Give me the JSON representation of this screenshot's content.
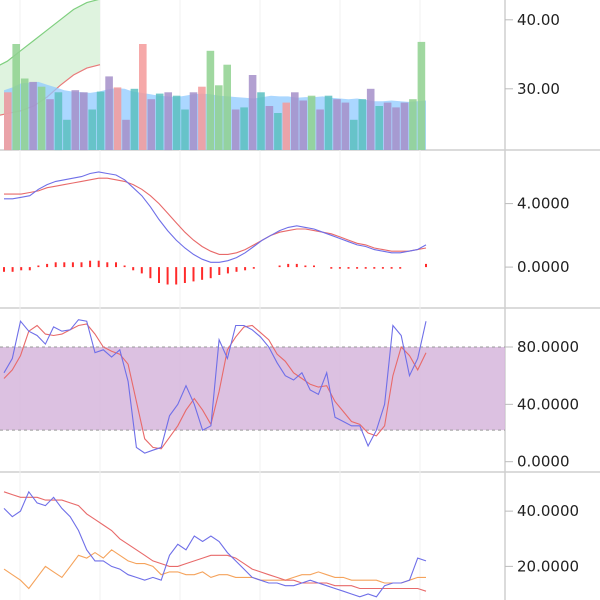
{
  "chart_data": [
    {
      "type": "bar",
      "title": "",
      "y_ticks": [
        "40.00",
        "30.00"
      ],
      "ylim": [
        22,
        42
      ],
      "series": [
        {
          "role": "volume_up",
          "color": "#8fd18f",
          "values": [
            null,
            26.5,
            null,
            null,
            null,
            null,
            null,
            null,
            null,
            null,
            null,
            null,
            null,
            null,
            null,
            null,
            null,
            null,
            null,
            null,
            null,
            null,
            null,
            null,
            null,
            null,
            null,
            null,
            null,
            null,
            null,
            null,
            null,
            26.8,
            null,
            null,
            null,
            null,
            null,
            null,
            null,
            null,
            null,
            null,
            null,
            null,
            null,
            null,
            null,
            35.0,
            null,
            null,
            null,
            null,
            null,
            null,
            null,
            null,
            null,
            null,
            null,
            null,
            null,
            null,
            null,
            null,
            null,
            null,
            null,
            null,
            null,
            null,
            null,
            null,
            null,
            null,
            null,
            null,
            null,
            null,
            null,
            null,
            null,
            null,
            null,
            null,
            null,
            null,
            null,
            null,
            null,
            null,
            null,
            null,
            null,
            null,
            null,
            null,
            null,
            null,
            null,
            null,
            null,
            null,
            null,
            null,
            null,
            null,
            null,
            null,
            null,
            null,
            null,
            null,
            null,
            null,
            null,
            null,
            null,
            null,
            null,
            null,
            null,
            null,
            null,
            null,
            null,
            null,
            null,
            null,
            null,
            null,
            null,
            null,
            null,
            null,
            null,
            null,
            null,
            null,
            null,
            null,
            null,
            null,
            null,
            null,
            null,
            null,
            null,
            null,
            null,
            null,
            null,
            null,
            null,
            null,
            null,
            null,
            null,
            null,
            null,
            null,
            null,
            null,
            null,
            null,
            null,
            null,
            null,
            null,
            null,
            null,
            null,
            null,
            null,
            null,
            null,
            null,
            null,
            null,
            null,
            null,
            null,
            null,
            null,
            null,
            null,
            null,
            null,
            null,
            null,
            null,
            null,
            null,
            null,
            null
          ]
        },
        {
          "role": "volume_bars",
          "values": [
            29.5,
            36.5,
            31.5,
            31.0,
            30.3,
            28.5,
            29.5,
            25.5,
            29.8,
            29.5,
            27.0,
            29.6,
            31.8,
            30.2,
            25.5,
            30.0,
            36.5,
            28.5,
            29.3,
            29.5,
            29.0,
            27.0,
            29.5,
            30.3,
            35.5,
            30.5,
            33.5,
            27.0,
            27.3,
            32.0,
            29.5,
            27.5,
            26.5,
            28.0,
            29.5,
            28.3,
            29.0,
            27.0,
            29.0,
            28.5,
            28.0,
            25.5,
            28.5,
            30.0,
            27.5,
            28.0,
            27.3,
            28.0,
            28.5,
            36.8
          ],
          "colors": [
            "#f49a9a",
            "#8fd18f",
            "#8fd18f",
            "#a58fc9",
            "#8fd18f",
            "#a58fc9",
            "#5bbfbf",
            "#5bbfbf",
            "#a58fc9",
            "#a58fc9",
            "#5bbfbf",
            "#5bbfbf",
            "#a58fc9",
            "#f49a9a",
            "#a58fc9",
            "#5bbfbf",
            "#f49a9a",
            "#a58fc9",
            "#5bbfbf",
            "#a58fc9",
            "#5bbfbf",
            "#5bbfbf",
            "#a58fc9",
            "#f49a9a",
            "#8fd18f",
            "#8fd18f",
            "#8fd18f",
            "#a58fc9",
            "#5bbfbf",
            "#a58fc9",
            "#5bbfbf",
            "#a58fc9",
            "#5bbfbf",
            "#f49a9a",
            "#a58fc9",
            "#a58fc9",
            "#8fd18f",
            "#a58fc9",
            "#5bbfbf",
            "#a58fc9",
            "#a58fc9",
            "#5bbfbf",
            "#5bbfbf",
            "#a58fc9",
            "#5bbfbf",
            "#a58fc9",
            "#a58fc9",
            "#a58fc9",
            "#8fd18f",
            "#8fd18f"
          ]
        },
        {
          "role": "price_area",
          "color": "#8fc9ff",
          "values": [
            29.8,
            30.2,
            30.8,
            30.9,
            31.0,
            30.6,
            30.2,
            29.8,
            29.6,
            29.5,
            29.4,
            29.6,
            29.9,
            30.1,
            30.0,
            29.6,
            29.4,
            29.2,
            29.0,
            28.9,
            28.8,
            29.0,
            29.2,
            29.3,
            29.2,
            29.0,
            28.9,
            28.8,
            28.7,
            28.6,
            28.8,
            29.0,
            28.9,
            28.9,
            28.7,
            28.8,
            28.8,
            28.9,
            28.7,
            28.6,
            28.5,
            28.6,
            28.4,
            28.2,
            28.2,
            28.3,
            28.2,
            28.1,
            28.2,
            28.3
          ]
        },
        {
          "role": "band_upper",
          "color": "#7fcf7f",
          "values": [
            33.0,
            34.0,
            35.5,
            37.0,
            38.5,
            40.0,
            41.5,
            42.5,
            43.0
          ]
        },
        {
          "role": "band_lower",
          "color": "#e97a7a",
          "values": [
            26.0,
            26.4,
            26.8,
            27.5,
            28.8,
            30.5,
            32.0,
            33.0,
            33.5
          ]
        }
      ]
    },
    {
      "type": "line",
      "title": "",
      "y_ticks": [
        "4.0000",
        "0.0000"
      ],
      "ylim": [
        -2.2,
        7.0
      ],
      "series": [
        {
          "role": "macd",
          "color": "#6f6fe8",
          "values": [
            4.3,
            4.3,
            4.4,
            4.5,
            4.9,
            5.2,
            5.4,
            5.5,
            5.6,
            5.7,
            5.9,
            6.0,
            5.9,
            5.8,
            5.5,
            5.0,
            4.5,
            3.8,
            3.0,
            2.3,
            1.7,
            1.2,
            0.8,
            0.5,
            0.3,
            0.3,
            0.4,
            0.6,
            0.9,
            1.3,
            1.7,
            2.0,
            2.3,
            2.5,
            2.6,
            2.5,
            2.4,
            2.2,
            2.0,
            1.8,
            1.6,
            1.4,
            1.3,
            1.1,
            1.0,
            0.9,
            0.9,
            1.0,
            1.1,
            1.4
          ]
        },
        {
          "role": "signal",
          "color": "#e86a6a",
          "values": [
            4.6,
            4.6,
            4.6,
            4.7,
            4.8,
            5.0,
            5.1,
            5.2,
            5.3,
            5.4,
            5.5,
            5.6,
            5.6,
            5.5,
            5.4,
            5.2,
            4.9,
            4.5,
            4.0,
            3.4,
            2.8,
            2.2,
            1.7,
            1.3,
            1.0,
            0.8,
            0.8,
            0.9,
            1.1,
            1.4,
            1.7,
            2.0,
            2.2,
            2.3,
            2.4,
            2.4,
            2.3,
            2.2,
            2.1,
            1.9,
            1.7,
            1.5,
            1.4,
            1.2,
            1.1,
            1.0,
            1.0,
            1.0,
            1.1,
            1.2
          ]
        },
        {
          "role": "histogram",
          "color": "#ff2a2a",
          "values": [
            -0.3,
            -0.3,
            -0.2,
            -0.2,
            0.1,
            0.2,
            0.3,
            0.3,
            0.3,
            0.3,
            0.4,
            0.4,
            0.3,
            0.3,
            0.1,
            -0.2,
            -0.4,
            -0.7,
            -1.0,
            -1.1,
            -1.1,
            -1.0,
            -0.9,
            -0.8,
            -0.7,
            -0.5,
            -0.4,
            -0.3,
            -0.2,
            -0.1,
            0.0,
            0.0,
            0.1,
            0.2,
            0.2,
            0.1,
            0.1,
            0.0,
            -0.1,
            -0.1,
            -0.1,
            -0.1,
            -0.1,
            -0.1,
            -0.1,
            -0.1,
            -0.1,
            0.0,
            0.0,
            0.2
          ]
        }
      ]
    },
    {
      "type": "line",
      "title": "",
      "y_ticks": [
        "80.0000",
        "40.0000",
        "0.0000"
      ],
      "ylim": [
        -3,
        103
      ],
      "band": [
        22,
        80
      ],
      "series": [
        {
          "role": "k",
          "color": "#6f6fe8",
          "values": [
            62,
            72,
            98,
            91,
            88,
            82,
            94,
            91,
            92,
            99,
            98,
            76,
            78,
            73,
            78,
            56,
            10,
            6,
            8,
            10,
            32,
            40,
            53,
            40,
            22,
            25,
            85,
            72,
            95,
            95,
            92,
            87,
            80,
            69,
            60,
            57,
            62,
            50,
            47,
            62,
            31,
            28,
            25,
            25,
            11,
            22,
            40,
            95,
            88,
            60,
            72,
            98
          ]
        },
        {
          "role": "d",
          "color": "#e86a6a",
          "values": [
            58,
            64,
            74,
            91,
            95,
            89,
            88,
            89,
            92,
            95,
            96,
            89,
            80,
            77,
            75,
            68,
            42,
            16,
            10,
            9,
            17,
            25,
            36,
            44,
            36,
            26,
            49,
            78,
            87,
            94,
            95,
            90,
            85,
            75,
            70,
            62,
            58,
            54,
            52,
            53,
            42,
            35,
            28,
            26,
            20,
            18,
            25,
            60,
            80,
            74,
            64,
            76
          ]
        }
      ]
    },
    {
      "type": "line",
      "title": "",
      "y_ticks": [
        "40.0000",
        "20.0000"
      ],
      "ylim": [
        10,
        52
      ],
      "series": [
        {
          "role": "series_blue",
          "color": "#6f6fe8",
          "values": [
            41,
            38,
            40,
            47,
            43,
            42,
            45,
            41,
            38,
            33,
            26,
            22,
            22,
            20,
            19,
            17,
            16,
            15,
            16,
            15,
            24,
            28,
            26,
            31,
            29,
            31,
            29,
            25,
            22,
            19,
            16,
            15,
            14,
            14,
            13,
            13,
            14,
            15,
            14,
            13,
            12,
            11,
            10,
            9,
            10,
            9,
            13,
            14,
            14,
            15,
            23,
            22
          ]
        },
        {
          "role": "series_red",
          "color": "#e86a6a",
          "values": [
            47,
            46,
            45,
            45,
            45,
            44,
            44,
            44,
            43,
            42,
            39,
            37,
            35,
            33,
            30,
            28,
            26,
            24,
            22,
            21,
            20,
            20,
            21,
            22,
            23,
            24,
            24,
            24,
            23,
            21,
            19,
            18,
            17,
            16,
            15,
            15,
            14,
            14,
            14,
            14,
            13,
            13,
            13,
            12,
            12,
            12,
            12,
            12,
            12,
            12,
            12,
            11
          ]
        },
        {
          "role": "series_orange",
          "color": "#f5a35c",
          "values": [
            19,
            17,
            15,
            12,
            16,
            20,
            18,
            16,
            20,
            24,
            23,
            25,
            23,
            26,
            24,
            22,
            21,
            21,
            20,
            17,
            18,
            18,
            17,
            17,
            18,
            16,
            17,
            17,
            16,
            16,
            16,
            15,
            15,
            15,
            15,
            16,
            17,
            17,
            18,
            17,
            16,
            16,
            15,
            15,
            15,
            15,
            14,
            14,
            14,
            15,
            16,
            16
          ]
        }
      ]
    }
  ]
}
